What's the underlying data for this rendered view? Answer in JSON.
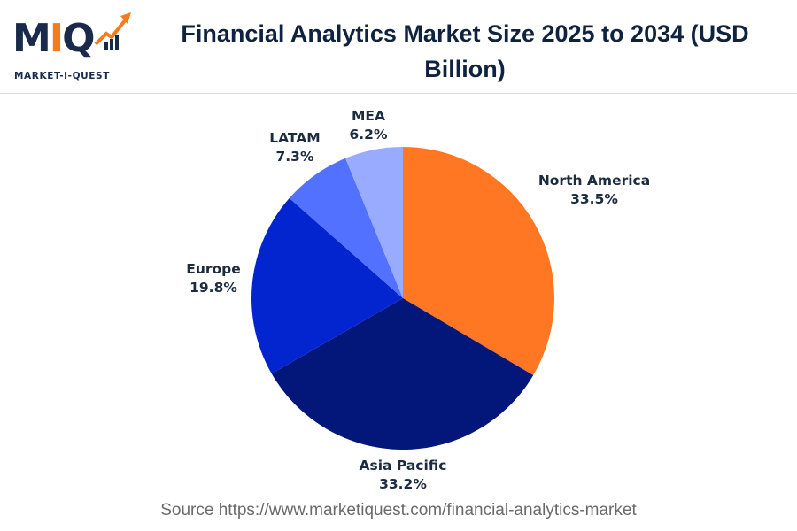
{
  "logo": {
    "letters_left": "M",
    "letters_mid": "I",
    "letters_right": "Q",
    "subtitle": "MARKET-I-QUEST"
  },
  "header": {
    "title": "Financial Analytics Market Size 2025 to 2034 (USD Billion)"
  },
  "colors": {
    "north_america": "#ff7722",
    "asia_pacific": "#03177a",
    "europe": "#0325d0",
    "latam": "#5271ff",
    "mea": "#99abff",
    "label_text": "#1b2b40"
  },
  "chart_data": {
    "type": "pie",
    "title": "Financial Analytics Market Size 2025 to 2034 (USD Billion)",
    "categories": [
      "North America",
      "Asia Pacific",
      "Europe",
      "LATAM",
      "MEA"
    ],
    "values": [
      33.5,
      33.2,
      19.8,
      7.3,
      6.2
    ],
    "unit": "%",
    "labels": [
      {
        "name": "North America",
        "pct": "33.5%"
      },
      {
        "name": "Asia Pacific",
        "pct": "33.2%"
      },
      {
        "name": "Europe",
        "pct": "19.8%"
      },
      {
        "name": "LATAM",
        "pct": "7.3%"
      },
      {
        "name": "MEA",
        "pct": "6.2%"
      }
    ],
    "start_angle": "12 o'clock",
    "direction": "clockwise",
    "legend": "none (direct labels)"
  },
  "footer": {
    "source": "Source https://www.marketiquest.com/financial-analytics-market"
  }
}
